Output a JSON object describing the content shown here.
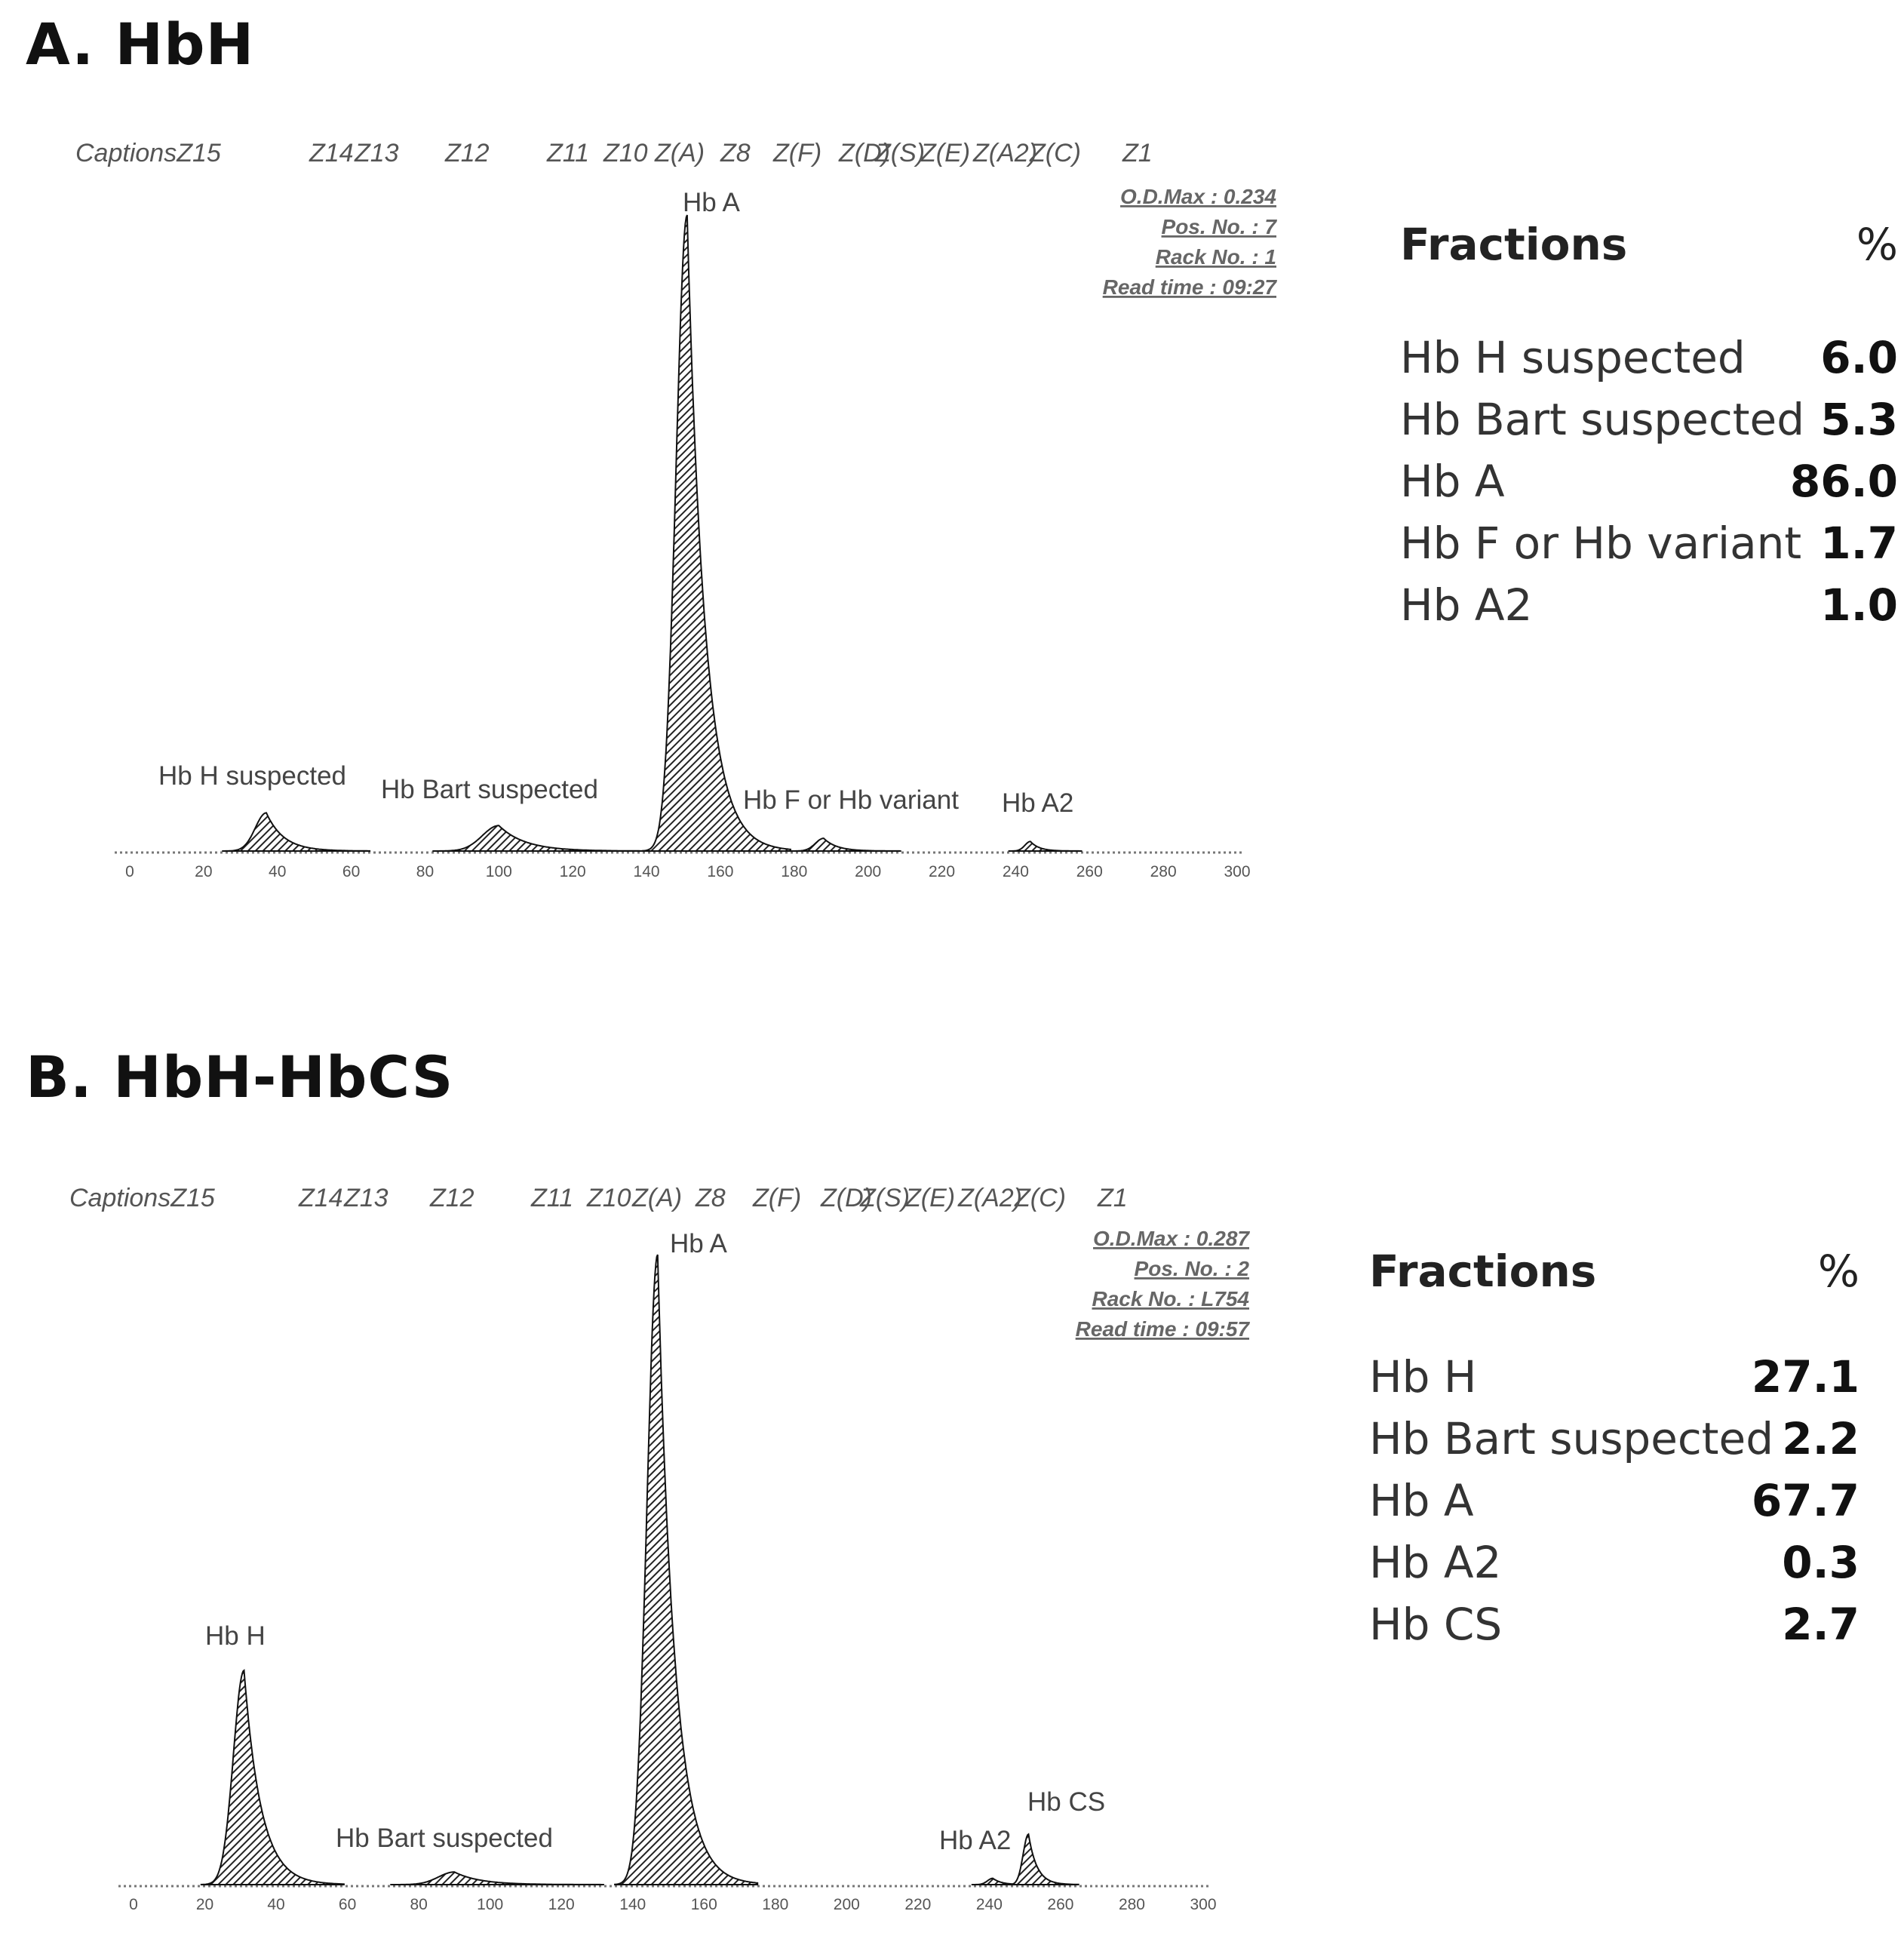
{
  "panels": [
    {
      "title": "A. HbH",
      "captions": [
        "CaptionsZ15",
        "Z14",
        "Z13",
        "Z12",
        "Z11",
        "Z10",
        "Z(A)",
        "Z8",
        "Z(F)",
        "Z(D)",
        "Z(S)",
        "Z(E)",
        "Z(A2)",
        "Z(C)",
        "Z1"
      ],
      "info": [
        "O.D.Max : 0.234",
        "Pos. No. : 7",
        "Rack No. : 1",
        "Read time : 09:27"
      ],
      "fractions_header": {
        "label": "Fractions",
        "unit": "%"
      },
      "fractions": [
        {
          "name": "Hb H suspected",
          "value": "6.0"
        },
        {
          "name": "Hb Bart suspected",
          "value": "5.3"
        },
        {
          "name": "Hb A",
          "value": "86.0"
        },
        {
          "name": "Hb F or Hb variant",
          "value": "1.7"
        },
        {
          "name": "Hb A2",
          "value": "1.0"
        }
      ]
    },
    {
      "title": "B. HbH-HbCS",
      "captions": [
        "CaptionsZ15",
        "Z14",
        "Z13",
        "Z12",
        "Z11",
        "Z10",
        "Z(A)",
        "Z8",
        "Z(F)",
        "Z(D)",
        "Z(S)",
        "Z(E)",
        "Z(A2)",
        "Z(C)",
        "Z1"
      ],
      "info": [
        "O.D.Max : 0.287",
        "Pos. No. : 2",
        "Rack No. : L754",
        "Read time : 09:57"
      ],
      "fractions_header": {
        "label": "Fractions",
        "unit": "%"
      },
      "fractions": [
        {
          "name": "Hb H",
          "value": "27.1"
        },
        {
          "name": "Hb Bart suspected",
          "value": "2.2"
        },
        {
          "name": "Hb A",
          "value": "67.7"
        },
        {
          "name": "Hb A2",
          "value": "0.3"
        },
        {
          "name": "Hb CS",
          "value": "2.7"
        }
      ]
    }
  ],
  "chart_data": [
    {
      "type": "area",
      "title": "A. HbH",
      "xlim": [
        0,
        300
      ],
      "xticks": [
        0,
        20,
        40,
        60,
        80,
        100,
        120,
        140,
        160,
        180,
        200,
        220,
        240,
        260,
        280,
        300
      ],
      "ylim": [
        0,
        1
      ],
      "y_unit": "relative O.D.",
      "hatch_color": "#222222",
      "peaks": [
        {
          "label": "Hb H suspected",
          "center": 37,
          "height": 0.06,
          "width": 4
        },
        {
          "label": "Hb Bart suspected",
          "center": 100,
          "height": 0.04,
          "width": 6
        },
        {
          "label": "Hb A",
          "center": 151,
          "height": 1.0,
          "width": 4
        },
        {
          "label": "Hb F or Hb variant",
          "center": 188,
          "height": 0.02,
          "width": 3
        },
        {
          "label": "Hb A2",
          "center": 244,
          "height": 0.015,
          "width": 2
        }
      ]
    },
    {
      "type": "area",
      "title": "B. HbH-HbCS",
      "xlim": [
        0,
        300
      ],
      "xticks": [
        0,
        20,
        40,
        60,
        80,
        100,
        120,
        140,
        160,
        180,
        200,
        220,
        240,
        260,
        280,
        300
      ],
      "ylim": [
        0,
        1
      ],
      "y_unit": "relative O.D.",
      "hatch_color": "#222222",
      "peaks": [
        {
          "label": "Hb H",
          "center": 31,
          "height": 0.34,
          "width": 4
        },
        {
          "label": "Hb Bart suspected",
          "center": 90,
          "height": 0.02,
          "width": 6
        },
        {
          "label": "Hb A",
          "center": 147,
          "height": 1.0,
          "width": 4
        },
        {
          "label": "Hb A2",
          "center": 241,
          "height": 0.01,
          "width": 2
        },
        {
          "label": "Hb CS",
          "center": 251,
          "height": 0.08,
          "width": 2
        }
      ]
    }
  ]
}
